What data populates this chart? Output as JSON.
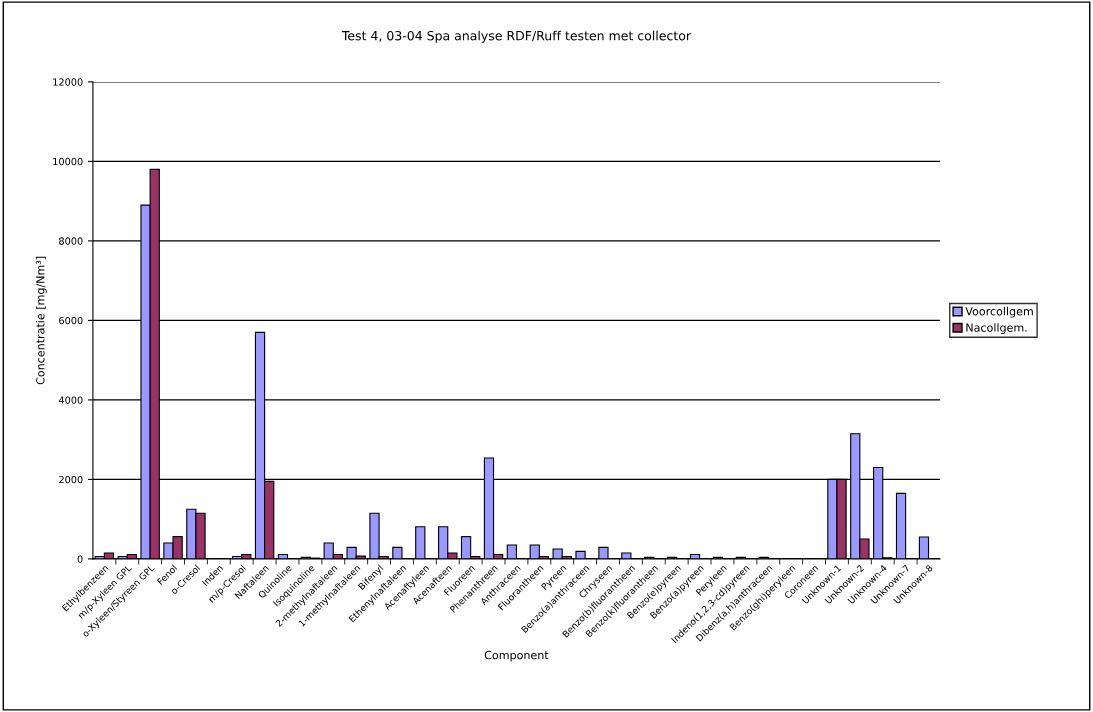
{
  "chart_data": {
    "type": "bar",
    "title": "Test 4, 03-04 Spa analyse RDF/Ruff testen met collector",
    "xlabel": "Component",
    "ylabel": "Concentratie [mg/Nm³]",
    "categories": [
      "Ethylbenzeen",
      "m/p-Xyleen GPL",
      "o-Xyleen/Styreen GPL",
      "Fenol",
      "o-Cresol",
      "Inden",
      "m/p-Cresol",
      "Naftaleen",
      "Quinoline",
      "Isoquinoline",
      "2-methylnaftaleen",
      "1-methylnaftaleen",
      "Bifenyl",
      "Ethenylnaftaleen",
      "Acenaftyleen",
      "Acenafteen",
      "Fluoreen",
      "Phenanthreen",
      "Anthraceen",
      "Fluorantheen",
      "Pyreen",
      "Benzo(a)anthraceen",
      "Chryseen",
      "Benzo(b)fluorantheen",
      "Benzo(k)fluorantheen",
      "Benzo(e)pyreen",
      "Benzo(a)pyreen",
      "Peryleen",
      "Indeno(1,2,3-cd)pyreen",
      "Dibenz(a,h)anthraceen",
      "Benzo(ghi)peryleen",
      "Coroneen",
      "Unknown-1",
      "Unknown-2",
      "Unknown-4",
      "Unknown-7",
      "Unknown-8"
    ],
    "series": [
      {
        "name": "Voorcollgem",
        "color": "#9999ff",
        "values": [
          60,
          60,
          8900,
          400,
          1250,
          0,
          60,
          5700,
          110,
          40,
          400,
          290,
          1150,
          290,
          810,
          810,
          560,
          2540,
          350,
          350,
          250,
          190,
          290,
          150,
          40,
          40,
          110,
          40,
          40,
          40,
          0,
          0,
          2000,
          3150,
          2300,
          1650,
          550
        ]
      },
      {
        "name": "Nacollgem.",
        "color": "#993366",
        "values": [
          150,
          110,
          9800,
          560,
          1150,
          0,
          110,
          1950,
          0,
          20,
          110,
          70,
          60,
          0,
          0,
          150,
          60,
          110,
          0,
          60,
          60,
          0,
          0,
          0,
          0,
          0,
          0,
          0,
          0,
          0,
          0,
          0,
          2000,
          500,
          30,
          0,
          0
        ]
      }
    ],
    "ylim": [
      0,
      12000
    ],
    "yticks": [
      0,
      2000,
      4000,
      6000,
      8000,
      10000,
      12000
    ],
    "grid": "y",
    "legend": "right"
  }
}
